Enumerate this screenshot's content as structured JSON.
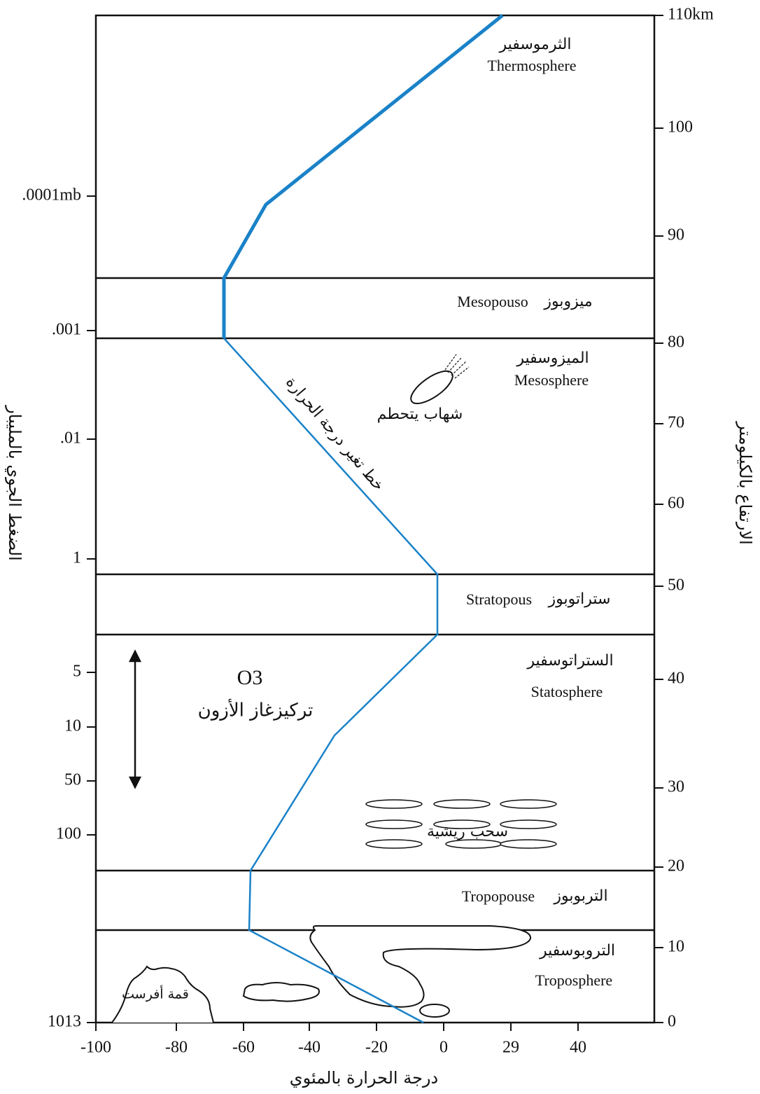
{
  "axes": {
    "x_title": "درجة الحرارة بالمئوي",
    "x_ticks": [
      "-100",
      "-80",
      "-60",
      "-40",
      "-20",
      "0",
      "29",
      "40"
    ],
    "right_title": "الارتفاع بالكيلومتر",
    "right_ticks": [
      "0",
      "10",
      "20",
      "30",
      "40",
      "50",
      "60",
      "70",
      "80",
      "90",
      "100",
      "110km"
    ],
    "left_title": "الضغط الجوي بالمليبار",
    "left_ticks": [
      "1013",
      "100",
      "50",
      "10",
      "5",
      "1",
      ".01",
      ".001",
      ".0001mb"
    ]
  },
  "layers": [
    {
      "arabic": "الثرموسفير",
      "english": "Thermosphere"
    },
    {
      "arabic": "ميزوبوز",
      "english": "Mesopouso"
    },
    {
      "arabic": "الميزوسفير",
      "english": "Mesosphere"
    },
    {
      "arabic": "ستراتوبوز",
      "english": "Stratopous"
    },
    {
      "arabic": "الستراتوسفير",
      "english": "Statosphere"
    },
    {
      "arabic": "التربوبوز",
      "english": "Tropopouse"
    },
    {
      "arabic": "التروبوسفير",
      "english": "Troposphere"
    }
  ],
  "labels": {
    "temperature_line": "خط تغير درجة الحرارة",
    "meteor": "شهاب يتحطم",
    "ozone_formula": "O3",
    "ozone": "تركيزغاز  الأزون",
    "cirrus": "سحب ريشية",
    "everest": "قمة أفرست"
  }
}
